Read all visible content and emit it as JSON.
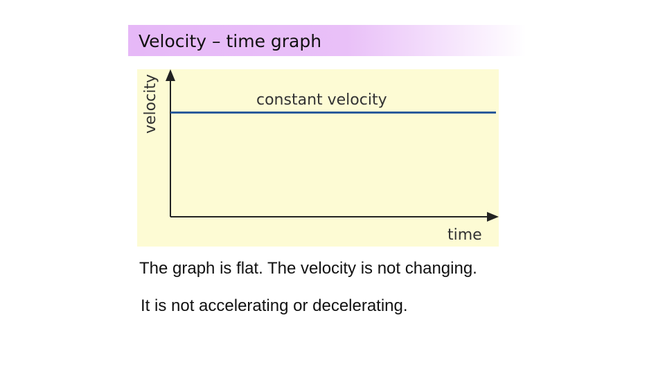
{
  "slide": {
    "title": "Velocity – time  graph",
    "captions": [
      "The graph is flat.  The velocity is not changing.",
      "It is  not accelerating  or decelerating."
    ]
  },
  "chart_data": {
    "type": "line",
    "title": "",
    "xlabel": "time",
    "ylabel": "velocity",
    "annotations": [
      "constant velocity"
    ],
    "series": [
      {
        "x": [
          0,
          1
        ],
        "y": [
          0.7,
          0.7
        ]
      }
    ],
    "xlim": [
      0,
      1
    ],
    "ylim": [
      0,
      1
    ],
    "grid": false,
    "colors": {
      "plot_bg": "#fdfbd4",
      "line": "#2a5a9a",
      "axis": "#222222"
    }
  }
}
